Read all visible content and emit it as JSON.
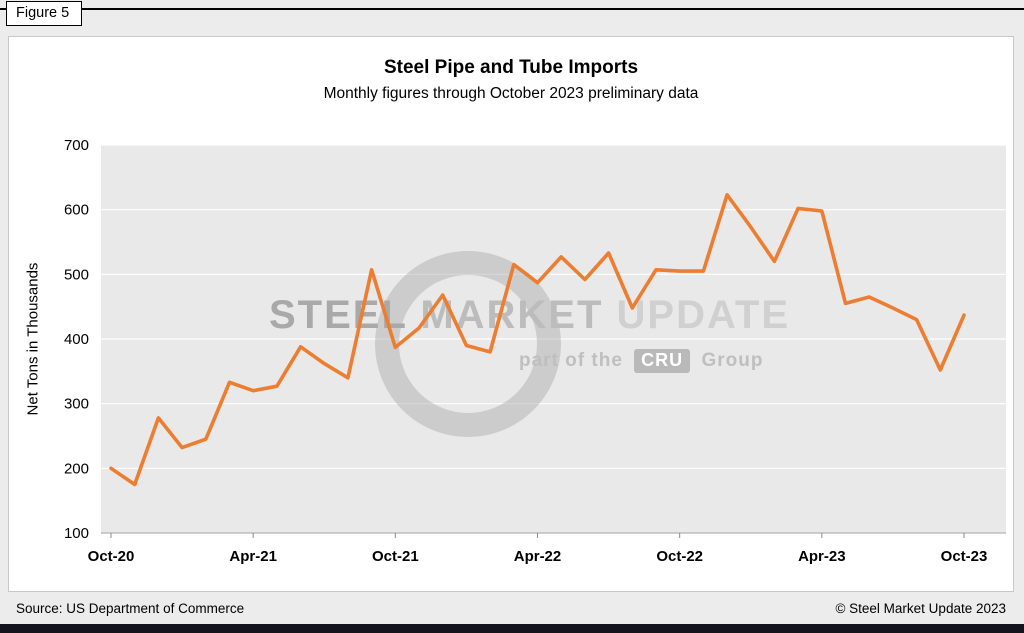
{
  "figure_label": "Figure 5",
  "source": "Source: US Department of Commerce",
  "copyright": "© Steel Market Update 2023",
  "watermark": {
    "word1": "STEEL",
    "word2": "MARKET",
    "word3": "UPDATE",
    "part_prefix": "part of the",
    "cru_label": "CRU",
    "part_suffix": "Group"
  },
  "chart_data": {
    "type": "line",
    "title": "Steel Pipe and Tube Imports",
    "subtitle": "Monthly figures through October 2023 preliminary data",
    "ylabel": "Net Tons in Thousands",
    "ylim": [
      100,
      700
    ],
    "yticks": [
      100,
      200,
      300,
      400,
      500,
      600,
      700
    ],
    "grid": true,
    "legend": "none",
    "line_color": "#ED7D31",
    "plot_bg": "#e9e9e9",
    "grid_color": "#ffffff",
    "x": [
      "Oct-20",
      "Nov-20",
      "Dec-20",
      "Jan-21",
      "Feb-21",
      "Mar-21",
      "Apr-21",
      "May-21",
      "Jun-21",
      "Jul-21",
      "Aug-21",
      "Sep-21",
      "Oct-21",
      "Nov-21",
      "Dec-21",
      "Jan-22",
      "Feb-22",
      "Mar-22",
      "Apr-22",
      "May-22",
      "Jun-22",
      "Jul-22",
      "Aug-22",
      "Sep-22",
      "Oct-22",
      "Nov-22",
      "Dec-22",
      "Jan-23",
      "Feb-23",
      "Mar-23",
      "Apr-23",
      "May-23",
      "Jun-23",
      "Jul-23",
      "Aug-23",
      "Sep-23",
      "Oct-23"
    ],
    "x_tick_labels": [
      "Oct-20",
      "Apr-21",
      "Oct-21",
      "Apr-22",
      "Oct-22",
      "Apr-23",
      "Oct-23"
    ],
    "x_tick_indices": [
      0,
      6,
      12,
      18,
      24,
      30,
      36
    ],
    "values": [
      200,
      175,
      278,
      232,
      245,
      333,
      320,
      327,
      388,
      362,
      340,
      507,
      387,
      417,
      468,
      390,
      380,
      515,
      487,
      527,
      492,
      533,
      448,
      507,
      505,
      505,
      623,
      573,
      520,
      602,
      598,
      455,
      465,
      448,
      430,
      352,
      437
    ]
  }
}
